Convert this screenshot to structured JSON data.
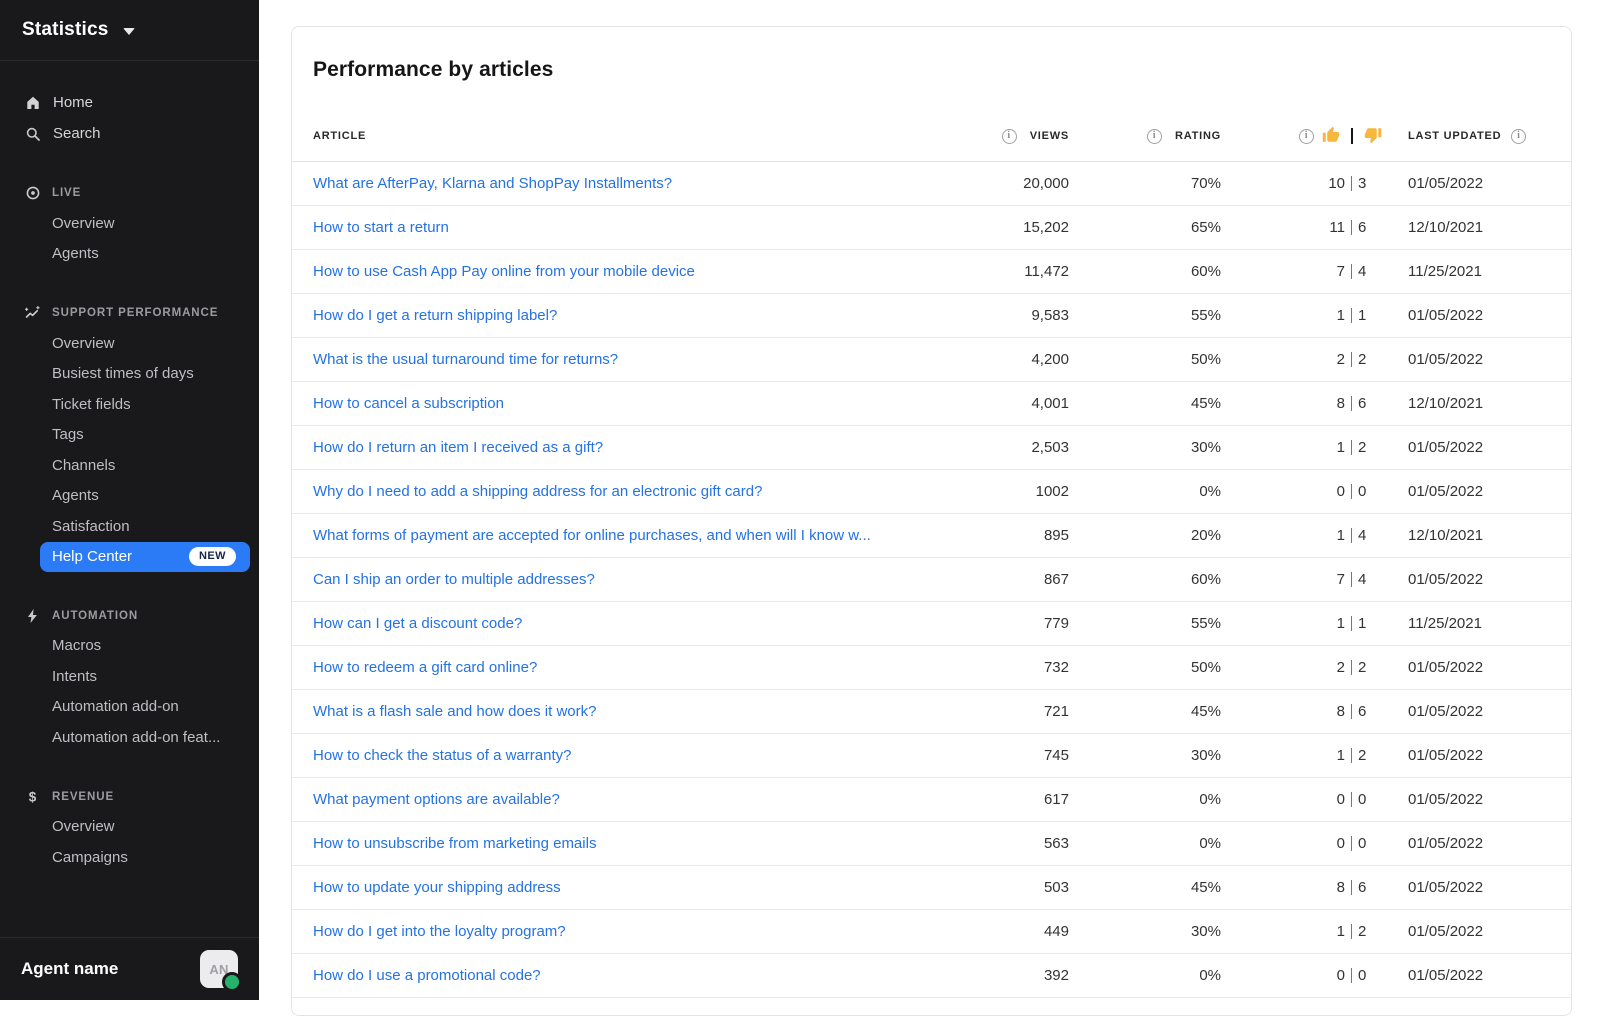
{
  "colors": {
    "sidebar_bg": "#19191b",
    "accent_blue": "#2b7bf7",
    "link_blue": "#2472e4",
    "presence_green": "#25b36b",
    "thumb_yellow": "#f6b73c",
    "badge_bg": "#ffffff",
    "badge_text": "#16254c"
  },
  "sidebar": {
    "workspace_label": "Statistics",
    "primary": [
      {
        "label": "Home",
        "icon": "home"
      },
      {
        "label": "Search",
        "icon": "search"
      }
    ],
    "sections": [
      {
        "label": "LIVE",
        "icon": "live",
        "items": [
          {
            "label": "Overview"
          },
          {
            "label": "Agents"
          }
        ]
      },
      {
        "label": "SUPPORT PERFORMANCE",
        "icon": "performance",
        "items": [
          {
            "label": "Overview"
          },
          {
            "label": "Busiest times of days"
          },
          {
            "label": "Ticket fields"
          },
          {
            "label": "Tags"
          },
          {
            "label": "Channels"
          },
          {
            "label": "Agents"
          },
          {
            "label": "Satisfaction"
          },
          {
            "label": "Help Center",
            "active": true,
            "badge": "NEW"
          }
        ]
      },
      {
        "label": "AUTOMATION",
        "icon": "automation",
        "items": [
          {
            "label": "Macros"
          },
          {
            "label": "Intents"
          },
          {
            "label": "Automation add-on"
          },
          {
            "label": "Automation add-on feat..."
          }
        ]
      },
      {
        "label": "REVENUE",
        "icon": "revenue",
        "items": [
          {
            "label": "Overview"
          },
          {
            "label": "Campaigns"
          }
        ]
      }
    ],
    "footer": {
      "agent_name": "Agent name",
      "avatar_initials": "AN",
      "presence": "online"
    }
  },
  "main": {
    "title": "Performance by articles",
    "table": {
      "header": {
        "article": "ARTICLE",
        "views": "VIEWS",
        "rating": "RATING",
        "last_updated": "LAST UPDATED"
      },
      "rows": [
        {
          "article": "What are AfterPay, Klarna and ShopPay Installments?",
          "views": "20,000",
          "rating": "70%",
          "up": "10",
          "down": "3",
          "updated": "01/05/2022"
        },
        {
          "article": "How to start a return",
          "views": "15,202",
          "rating": "65%",
          "up": "11",
          "down": "6",
          "updated": "12/10/2021"
        },
        {
          "article": "How to use Cash App Pay online from your mobile device",
          "views": "11,472",
          "rating": "60%",
          "up": "7",
          "down": "4",
          "updated": "11/25/2021"
        },
        {
          "article": "How do I get a return shipping label?",
          "views": "9,583",
          "rating": "55%",
          "up": "1",
          "down": "1",
          "updated": "01/05/2022"
        },
        {
          "article": "What is the usual turnaround time for returns?",
          "views": "4,200",
          "rating": "50%",
          "up": "2",
          "down": "2",
          "updated": "01/05/2022"
        },
        {
          "article": "How to cancel a subscription",
          "views": "4,001",
          "rating": "45%",
          "up": "8",
          "down": "6",
          "updated": "12/10/2021"
        },
        {
          "article": "How do I return an item I received as a gift?",
          "views": "2,503",
          "rating": "30%",
          "up": "1",
          "down": "2",
          "updated": "01/05/2022"
        },
        {
          "article": "Why do I need to add a shipping address for an electronic gift card?",
          "views": "1002",
          "rating": "0%",
          "up": "0",
          "down": "0",
          "updated": "01/05/2022"
        },
        {
          "article": "What forms of payment are accepted for online purchases, and when will I know w...",
          "views": "895",
          "rating": "20%",
          "up": "1",
          "down": "4",
          "updated": "12/10/2021"
        },
        {
          "article": "Can I ship an order to multiple addresses?",
          "views": "867",
          "rating": "60%",
          "up": "7",
          "down": "4",
          "updated": "01/05/2022"
        },
        {
          "article": "How can I get a discount code?",
          "views": "779",
          "rating": "55%",
          "up": "1",
          "down": "1",
          "updated": "11/25/2021"
        },
        {
          "article": "How to redeem a gift card online?",
          "views": "732",
          "rating": "50%",
          "up": "2",
          "down": "2",
          "updated": "01/05/2022"
        },
        {
          "article": "What is a flash sale and how does it work?",
          "views": "721",
          "rating": "45%",
          "up": "8",
          "down": "6",
          "updated": "01/05/2022"
        },
        {
          "article": "How to check the status of a warranty?",
          "views": "745",
          "rating": "30%",
          "up": "1",
          "down": "2",
          "updated": "01/05/2022"
        },
        {
          "article": "What payment options are available?",
          "views": "617",
          "rating": "0%",
          "up": "0",
          "down": "0",
          "updated": "01/05/2022"
        },
        {
          "article": "How to unsubscribe from marketing emails",
          "views": "563",
          "rating": "0%",
          "up": "0",
          "down": "0",
          "updated": "01/05/2022"
        },
        {
          "article": "How to update your shipping address",
          "views": "503",
          "rating": "45%",
          "up": "8",
          "down": "6",
          "updated": "01/05/2022"
        },
        {
          "article": "How do I get into the loyalty program?",
          "views": "449",
          "rating": "30%",
          "up": "1",
          "down": "2",
          "updated": "01/05/2022"
        },
        {
          "article": "How do I use a promotional code?",
          "views": "392",
          "rating": "0%",
          "up": "0",
          "down": "0",
          "updated": "01/05/2022"
        }
      ]
    }
  }
}
